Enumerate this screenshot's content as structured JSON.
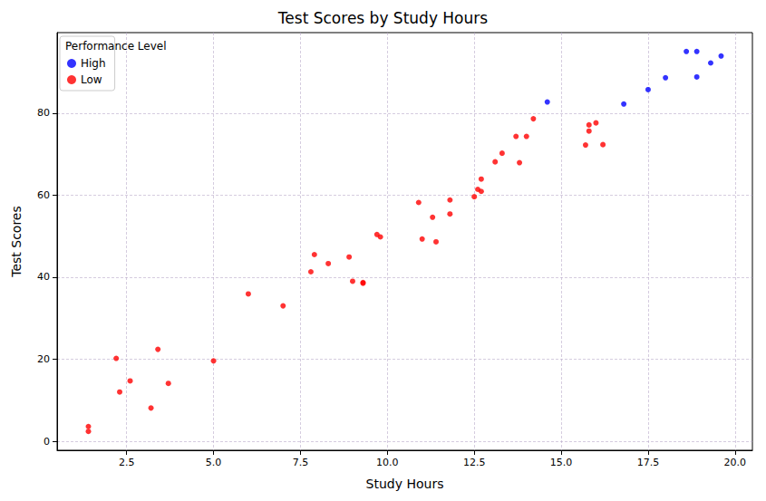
{
  "chart_data": {
    "type": "scatter",
    "title": "Test Scores by Study Hours",
    "x_label": "Study Hours",
    "y_label": "Test Scores",
    "legend_title": "Performance Level",
    "legend": "upper left",
    "grid": true,
    "marker": "circle",
    "xlim": [
      0.5,
      20.5
    ],
    "xticks": [
      {
        "value": 2.5,
        "label": "2.5"
      },
      {
        "value": 5,
        "label": "5.0"
      },
      {
        "value": 7.5,
        "label": "7.5"
      },
      {
        "value": 10,
        "label": "10.0"
      },
      {
        "value": 12.5,
        "label": "12.5"
      },
      {
        "value": 15,
        "label": "15.0"
      },
      {
        "value": 17.5,
        "label": "17.5"
      },
      {
        "value": 20,
        "label": "20.0"
      }
    ],
    "ylim": [
      -2.2,
      99.6
    ],
    "yticks": [
      0,
      20,
      40,
      60,
      80
    ],
    "series": [
      {
        "name": "High",
        "color": "#0000ff",
        "x": [
          14.6,
          16.8,
          17.5,
          18.0,
          18.6,
          18.9,
          18.9,
          19.3,
          19.6
        ],
        "values": [
          82.7,
          82.2,
          85.7,
          88.6,
          95.0,
          88.8,
          95.0,
          92.2,
          93.9
        ]
      },
      {
        "name": "Low",
        "color": "#ff0000",
        "x": [
          1.4,
          1.4,
          2.2,
          2.3,
          2.6,
          3.2,
          3.4,
          3.7,
          5.0,
          6.0,
          7.0,
          7.8,
          7.9,
          8.3,
          8.9,
          9.0,
          9.3,
          9.3,
          9.7,
          9.8,
          10.9,
          11.0,
          11.3,
          11.4,
          11.8,
          11.8,
          12.5,
          12.6,
          12.7,
          12.7,
          13.1,
          13.3,
          13.7,
          13.8,
          14.0,
          14.2,
          15.7,
          15.8,
          15.8,
          16.0,
          16.2
        ],
        "values": [
          2.4,
          3.6,
          20.2,
          12.0,
          14.7,
          8.1,
          22.4,
          14.1,
          19.6,
          35.9,
          33.0,
          41.3,
          45.5,
          43.3,
          44.9,
          39.0,
          38.7,
          38.5,
          50.4,
          49.8,
          58.2,
          49.3,
          54.6,
          48.6,
          58.8,
          55.4,
          59.6,
          61.4,
          63.9,
          60.9,
          68.1,
          70.2,
          74.3,
          67.9,
          74.3,
          78.6,
          72.2,
          75.6,
          77.1,
          77.6,
          72.3
        ]
      }
    ]
  }
}
